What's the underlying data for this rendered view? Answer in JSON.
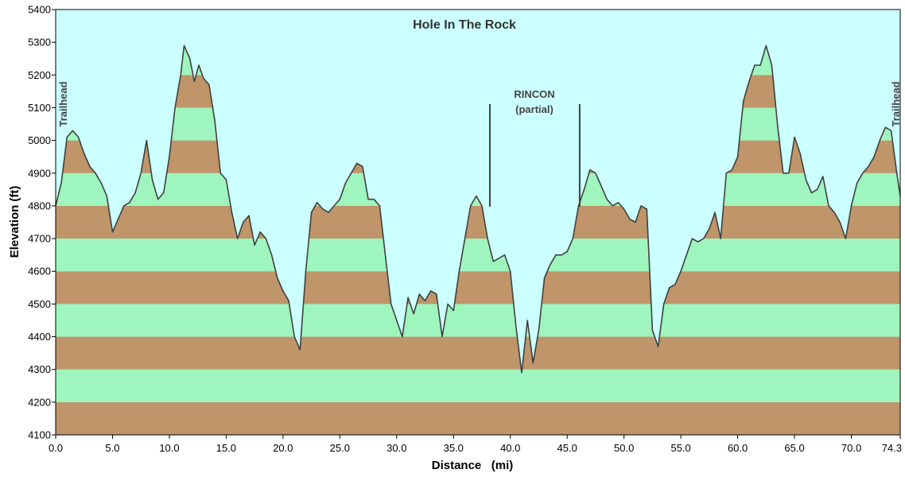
{
  "chart_data": {
    "type": "area",
    "title": "Hole In The Rock",
    "xlabel": "Distance   (mi)",
    "ylabel": "Elevation (ft)",
    "xlim": [
      0,
      74.3
    ],
    "ylim": [
      4100,
      5400
    ],
    "x_ticks": [
      "0.0",
      "5.0",
      "10.0",
      "15.0",
      "20.0",
      "25.0",
      "30.0",
      "35.0",
      "40.0",
      "45.0",
      "50.0",
      "55.0",
      "60.0",
      "65.0",
      "70.0",
      "74.3"
    ],
    "y_ticks": [
      "4100",
      "4200",
      "4300",
      "4400",
      "4500",
      "4600",
      "4700",
      "4800",
      "4900",
      "5000",
      "5100",
      "5200",
      "5300",
      "5400"
    ],
    "colors": {
      "background": "#ccffff",
      "band_dark": "#bf9569",
      "band_light": "#9ef5bd",
      "line": "#404040"
    },
    "annotations": {
      "trailhead_left": "Trailhead",
      "trailhead_right": "Trailhead",
      "rincon_line1": "RINCON",
      "rincon_line2": "(partial)",
      "rincon_markers_x": [
        38.2,
        46.1
      ]
    },
    "series": [
      {
        "x": [
          0,
          0.5,
          1,
          1.5,
          2,
          2.5,
          3,
          3.5,
          4,
          4.5,
          5,
          5.5,
          6,
          6.5,
          7,
          7.5,
          8,
          8.5,
          9,
          9.5,
          10,
          10.5,
          11,
          11.3,
          11.8,
          12.2,
          12.6,
          13,
          13.5,
          14,
          14.5,
          15,
          15.5,
          16,
          16.5,
          17,
          17.5,
          18,
          18.5,
          19,
          19.5,
          20,
          20.5,
          21,
          21.5,
          22,
          22.5,
          23,
          23.5,
          24,
          24.5,
          25,
          25.5,
          26,
          26.5,
          27,
          27.5,
          28,
          28.5,
          29,
          29.5,
          30,
          30.5,
          31,
          31.5,
          32,
          32.5,
          33,
          33.5,
          34,
          34.5,
          35,
          35.5,
          36,
          36.5,
          37,
          37.5,
          38,
          38.5,
          39,
          39.5,
          40,
          40.5,
          41,
          41.5,
          42,
          42.5,
          43,
          43.5,
          44,
          44.5,
          45,
          45.5,
          46,
          46.5,
          47,
          47.5,
          48,
          48.5,
          49,
          49.5,
          50,
          50.5,
          51,
          51.5,
          52,
          52.5,
          53,
          53.5,
          54,
          54.5,
          55,
          55.5,
          56,
          56.5,
          57,
          57.5,
          58,
          58.5,
          59,
          59.5,
          60,
          60.5,
          61,
          61.5,
          62,
          62.5,
          63,
          63.5,
          64,
          64.5,
          65,
          65.5,
          66,
          66.5,
          67,
          67.5,
          68,
          68.5,
          69,
          69.5,
          70,
          70.5,
          71,
          71.5,
          72,
          72.5,
          73,
          73.5,
          74,
          74.3
        ],
        "y": [
          4800,
          4870,
          5010,
          5030,
          5010,
          4960,
          4920,
          4900,
          4870,
          4830,
          4720,
          4760,
          4800,
          4810,
          4840,
          4900,
          5000,
          4880,
          4820,
          4840,
          4950,
          5100,
          5200,
          5290,
          5250,
          5180,
          5230,
          5190,
          5170,
          5060,
          4900,
          4880,
          4780,
          4700,
          4750,
          4770,
          4680,
          4720,
          4700,
          4650,
          4580,
          4540,
          4510,
          4400,
          4360,
          4600,
          4780,
          4810,
          4790,
          4780,
          4800,
          4820,
          4870,
          4900,
          4930,
          4920,
          4820,
          4820,
          4800,
          4650,
          4500,
          4450,
          4400,
          4520,
          4470,
          4530,
          4510,
          4540,
          4530,
          4400,
          4500,
          4480,
          4600,
          4700,
          4800,
          4830,
          4800,
          4700,
          4630,
          4640,
          4650,
          4600,
          4430,
          4290,
          4450,
          4320,
          4420,
          4580,
          4620,
          4650,
          4650,
          4660,
          4700,
          4800,
          4850,
          4910,
          4900,
          4860,
          4820,
          4800,
          4810,
          4790,
          4760,
          4750,
          4800,
          4790,
          4420,
          4370,
          4500,
          4550,
          4560,
          4600,
          4650,
          4700,
          4690,
          4700,
          4730,
          4780,
          4700,
          4900,
          4910,
          4950,
          5120,
          5180,
          5230,
          5230,
          5290,
          5230,
          5050,
          4900,
          4900,
          5010,
          4960,
          4880,
          4840,
          4850,
          4890,
          4800,
          4780,
          4750,
          4700,
          4800,
          4870,
          4900,
          4920,
          4950,
          5000,
          5040,
          5030,
          4900,
          4830
        ]
      }
    ]
  }
}
